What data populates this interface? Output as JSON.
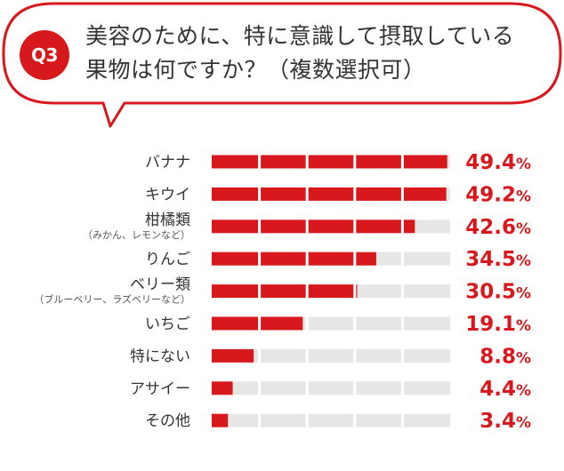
{
  "header": {
    "badge": "Q3",
    "question": "美容のために、特に意識して摂取している果物は何ですか？（複数選択可）"
  },
  "colors": {
    "accent": "#d7191e",
    "track": "#e6e6e6",
    "bubble_border": "#d7191e"
  },
  "chart_data": {
    "type": "bar",
    "orientation": "horizontal",
    "title": "美容のために、特に意識して摂取している果物は何ですか？（複数選択可）",
    "unit": "%",
    "xlim": [
      0,
      50
    ],
    "categories": [
      {
        "label": "バナナ",
        "sublabel": "",
        "value": 49.4,
        "value_text": "49.4",
        "unit_text": "%"
      },
      {
        "label": "キウイ",
        "sublabel": "",
        "value": 49.2,
        "value_text": "49.2",
        "unit_text": "%"
      },
      {
        "label": "柑橘類",
        "sublabel": "（みかん、レモンなど）",
        "value": 42.6,
        "value_text": "42.6",
        "unit_text": "%"
      },
      {
        "label": "りんご",
        "sublabel": "",
        "value": 34.5,
        "value_text": "34.5",
        "unit_text": "%"
      },
      {
        "label": "ベリー類",
        "sublabel": "（ブルーベリー、ラズベリーなど）",
        "value": 30.5,
        "value_text": "30.5",
        "unit_text": "%"
      },
      {
        "label": "いちご",
        "sublabel": "",
        "value": 19.1,
        "value_text": "19.1",
        "unit_text": "%"
      },
      {
        "label": "特にない",
        "sublabel": "",
        "value": 8.8,
        "value_text": "8.8",
        "unit_text": "%"
      },
      {
        "label": "アサイー",
        "sublabel": "",
        "value": 4.4,
        "value_text": "4.4",
        "unit_text": "%"
      },
      {
        "label": "その他",
        "sublabel": "",
        "value": 3.4,
        "value_text": "3.4",
        "unit_text": "%"
      }
    ]
  }
}
